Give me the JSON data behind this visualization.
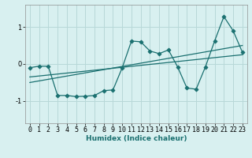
{
  "xlabel": "Humidex (Indice chaleur)",
  "ylabel": "",
  "bg_color": "#d8f0f0",
  "grid_color": "#b8d8d8",
  "line_color": "#1a7070",
  "xlim": [
    -0.5,
    23.5
  ],
  "ylim": [
    -1.6,
    1.6
  ],
  "yticks": [
    -1,
    0,
    1
  ],
  "xticks": [
    0,
    1,
    2,
    3,
    4,
    5,
    6,
    7,
    8,
    9,
    10,
    11,
    12,
    13,
    14,
    15,
    16,
    17,
    18,
    19,
    20,
    21,
    22,
    23
  ],
  "curve_x": [
    0,
    1,
    2,
    3,
    4,
    5,
    6,
    7,
    8,
    9,
    10,
    11,
    12,
    13,
    14,
    15,
    16,
    17,
    18,
    19,
    20,
    21,
    22,
    23
  ],
  "curve_y": [
    -0.1,
    -0.06,
    -0.06,
    -0.85,
    -0.85,
    -0.88,
    -0.87,
    -0.85,
    -0.72,
    -0.7,
    -0.1,
    0.62,
    0.6,
    0.35,
    0.28,
    0.38,
    -0.08,
    -0.65,
    -0.68,
    -0.08,
    0.62,
    1.28,
    0.9,
    0.32
  ],
  "line1_x": [
    0,
    23
  ],
  "line1_y": [
    -0.35,
    0.25
  ],
  "line2_x": [
    0,
    23
  ],
  "line2_y": [
    -0.5,
    0.5
  ]
}
